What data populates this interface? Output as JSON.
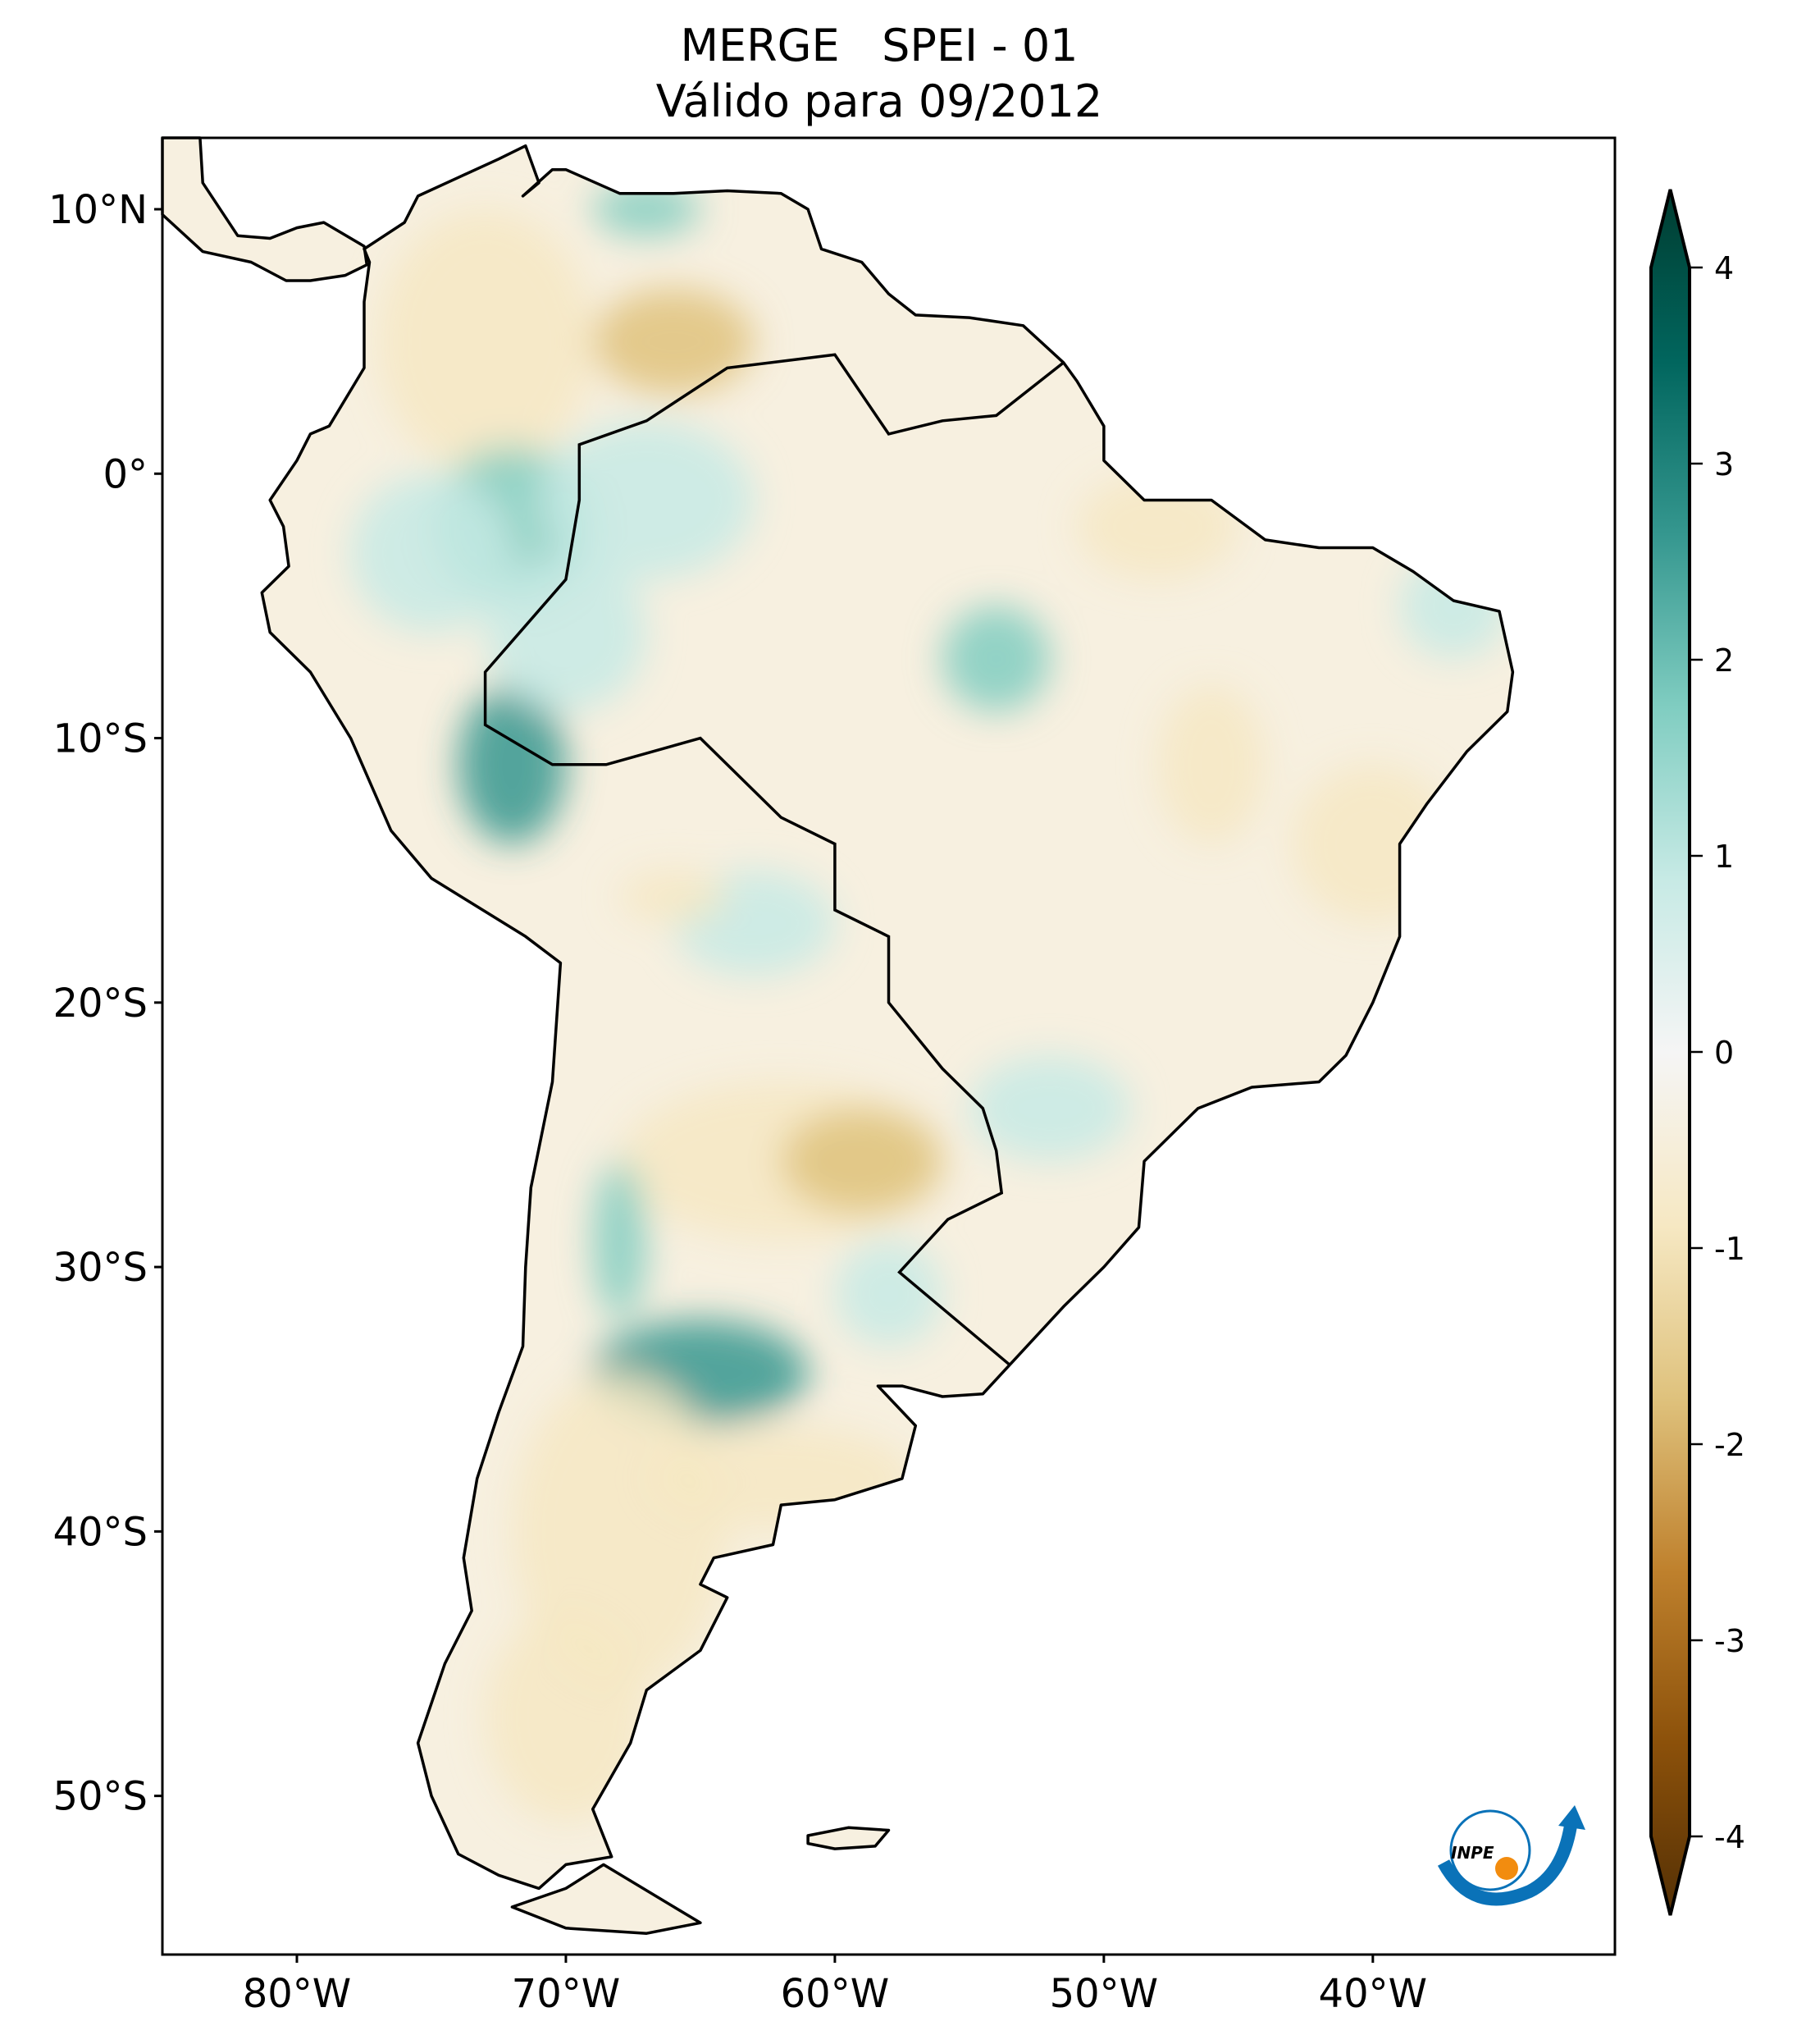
{
  "title": {
    "line1": "MERGE   SPEI - 01",
    "line2": "Válido para 09/2012"
  },
  "map": {
    "projection": "PlateCarree",
    "extent_lon": [
      -85,
      -31
    ],
    "extent_lat": [
      -56,
      12.7
    ],
    "lat_ticks": [
      {
        "value": 10,
        "label": "10°N"
      },
      {
        "value": 0,
        "label": "0°"
      },
      {
        "value": -10,
        "label": "10°S"
      },
      {
        "value": -20,
        "label": "20°S"
      },
      {
        "value": -30,
        "label": "30°S"
      },
      {
        "value": -40,
        "label": "40°S"
      },
      {
        "value": -50,
        "label": "50°S"
      }
    ],
    "lon_ticks": [
      {
        "value": -80,
        "label": "80°W"
      },
      {
        "value": -70,
        "label": "70°W"
      },
      {
        "value": -60,
        "label": "60°W"
      },
      {
        "value": -50,
        "label": "50°W"
      },
      {
        "value": -40,
        "label": "40°W"
      }
    ]
  },
  "colorbar": {
    "colormap": "BrBG",
    "range": [
      -4,
      4
    ],
    "extend": "both",
    "ticks": [
      {
        "value": 4,
        "label": "4"
      },
      {
        "value": 3,
        "label": "3"
      },
      {
        "value": 2,
        "label": "2"
      },
      {
        "value": 1,
        "label": "1"
      },
      {
        "value": 0,
        "label": "0"
      },
      {
        "value": -1,
        "label": "-1"
      },
      {
        "value": -2,
        "label": "-2"
      },
      {
        "value": -3,
        "label": "-3"
      },
      {
        "value": -4,
        "label": "-4"
      }
    ],
    "colors": [
      "#543005",
      "#8c510a",
      "#bf812d",
      "#dfc27d",
      "#f6e8c3",
      "#f5f5f5",
      "#c7eae5",
      "#80cdc1",
      "#35978f",
      "#01665e",
      "#003c30"
    ]
  },
  "logo": {
    "text": "INPE",
    "colors": {
      "blue": "#0a72b8",
      "orange": "#f28c0f"
    }
  }
}
